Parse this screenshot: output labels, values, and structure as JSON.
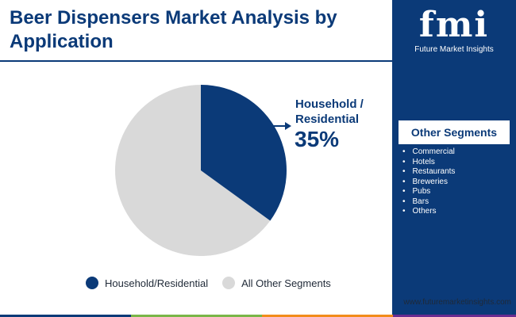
{
  "header": {
    "title": "Beer Dispensers Market Analysis by Application"
  },
  "chart_data": {
    "type": "pie",
    "categories": [
      "Household/Residential",
      "All Other Segments"
    ],
    "values": [
      35,
      65
    ],
    "colors": [
      "#0b3a78",
      "#d9d9d9"
    ],
    "callout": {
      "label": "Household / Residential",
      "value": "35%"
    },
    "legend_position": "bottom"
  },
  "sidebar": {
    "logo_mark": "fmi",
    "logo_text": "Future Market Insights",
    "segments_title": "Other Segments",
    "segments": [
      "Commercial",
      "Hotels",
      "Restaurants",
      "Breweries",
      "Pubs",
      "Bars",
      "Others"
    ]
  },
  "footer": {
    "website": "www.futuremarketinsights.com"
  },
  "colors": {
    "brand": "#0b3a78",
    "other_segments": "#d9d9d9",
    "bottom_bar": [
      "#0b3a78",
      "#7ab648",
      "#f28c1b",
      "#6a2c91"
    ]
  }
}
